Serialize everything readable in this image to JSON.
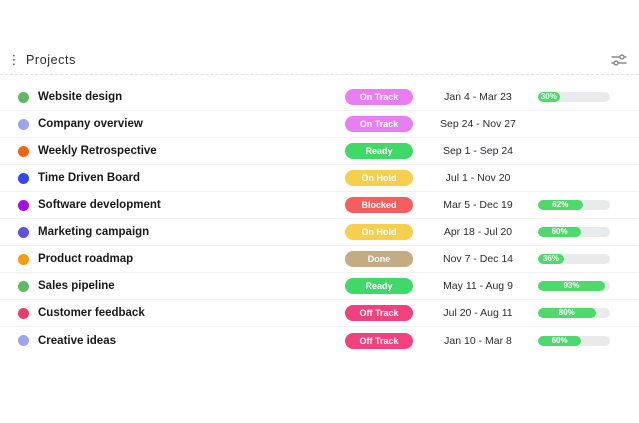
{
  "header": {
    "title": "Projects",
    "menu_icon": "kebab-vertical",
    "filter_icon": "sliders"
  },
  "colors": {
    "progress_fill": "#4ed96d",
    "progress_track": "#e9eaec",
    "row_divider": "#f1f1f2",
    "header_divider": "#e3e3e5"
  },
  "projects": [
    {
      "name": "Website design",
      "dot_color": "#5fb865",
      "status": "On Track",
      "status_color": "#e97ef2",
      "dates": "Jan 4 - Mar 23",
      "progress": 30
    },
    {
      "name": "Company overview",
      "dot_color": "#9ba6ee",
      "status": "On Track",
      "status_color": "#e97ef2",
      "dates": "Sep 24 - Nov 27",
      "progress": null
    },
    {
      "name": "Weekly Retrospective",
      "dot_color": "#f6640e",
      "status": "Ready",
      "status_color": "#40d967",
      "dates": "Sep 1 - Sep 24",
      "progress": null
    },
    {
      "name": "Time Driven Board",
      "dot_color": "#3448e8",
      "status": "On Hold",
      "status_color": "#f6cf4d",
      "dates": "Jul 1 - Nov 20",
      "progress": null
    },
    {
      "name": "Software development",
      "dot_color": "#a50de5",
      "status": "Blocked",
      "status_color": "#f45e5e",
      "dates": "Mar 5 - Dec 19",
      "progress": 62
    },
    {
      "name": "Marketing campaign",
      "dot_color": "#5a54dd",
      "status": "On Hold",
      "status_color": "#f6cf4d",
      "dates": "Apr 18 - Jul 20",
      "progress": 60
    },
    {
      "name": "Product roadmap",
      "dot_color": "#f79c0d",
      "status": "Done",
      "status_color": "#c3ab83",
      "dates": "Nov 7 - Dec 14",
      "progress": 36
    },
    {
      "name": "Sales pipeline",
      "dot_color": "#5fb865",
      "status": "Ready",
      "status_color": "#40d967",
      "dates": "May 11 - Aug 9",
      "progress": 93
    },
    {
      "name": "Customer feedback",
      "dot_color": "#ee3a6e",
      "status": "Off Track",
      "status_color": "#f4407d",
      "dates": "Jul 20 - Aug 11",
      "progress": 80
    },
    {
      "name": "Creative ideas",
      "dot_color": "#9ba6ee",
      "status": "Off Track",
      "status_color": "#f4407d",
      "dates": "Jan 10 - Mar 8",
      "progress": 60
    }
  ]
}
